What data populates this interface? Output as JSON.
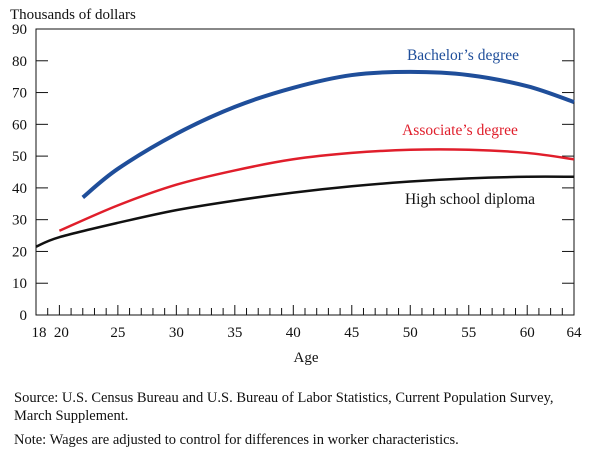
{
  "chart_data": {
    "type": "line",
    "ylabel": "Thousands of dollars",
    "xlabel": "Age",
    "xlim": [
      18,
      64
    ],
    "ylim": [
      0,
      90
    ],
    "x_tick_labels": [
      "18",
      "20",
      "25",
      "30",
      "35",
      "40",
      "45",
      "50",
      "55",
      "60",
      "64"
    ],
    "y_tick_labels": [
      "0",
      "10",
      "20",
      "30",
      "40",
      "50",
      "60",
      "70",
      "80",
      "90"
    ],
    "grid": false,
    "series": [
      {
        "name": "Bachelor’s degree",
        "color": "#1f4e9a",
        "x": [
          22,
          25,
          30,
          35,
          40,
          45,
          50,
          55,
          60,
          64
        ],
        "y": [
          37,
          46,
          57,
          65.5,
          71.5,
          75.5,
          76.5,
          75.5,
          72,
          67
        ]
      },
      {
        "name": "Associate’s degree",
        "color": "#e01e2b",
        "x": [
          20,
          25,
          30,
          35,
          40,
          45,
          50,
          55,
          60,
          64
        ],
        "y": [
          26.5,
          34.5,
          41,
          45.5,
          49,
          51,
          52,
          52,
          51,
          49
        ]
      },
      {
        "name": "High school diploma",
        "color": "#111111",
        "x": [
          18,
          20,
          25,
          30,
          35,
          40,
          45,
          50,
          55,
          60,
          64
        ],
        "y": [
          21.5,
          24.5,
          29,
          33,
          36,
          38.5,
          40.5,
          42,
          43,
          43.5,
          43.5
        ]
      }
    ]
  },
  "notes": {
    "source": "Source: U.S. Census Bureau and U.S. Bureau of Labor Statistics, Current Population Survey, March Supplement.",
    "note": "Note: Wages are adjusted to control for differences in worker characteristics."
  }
}
